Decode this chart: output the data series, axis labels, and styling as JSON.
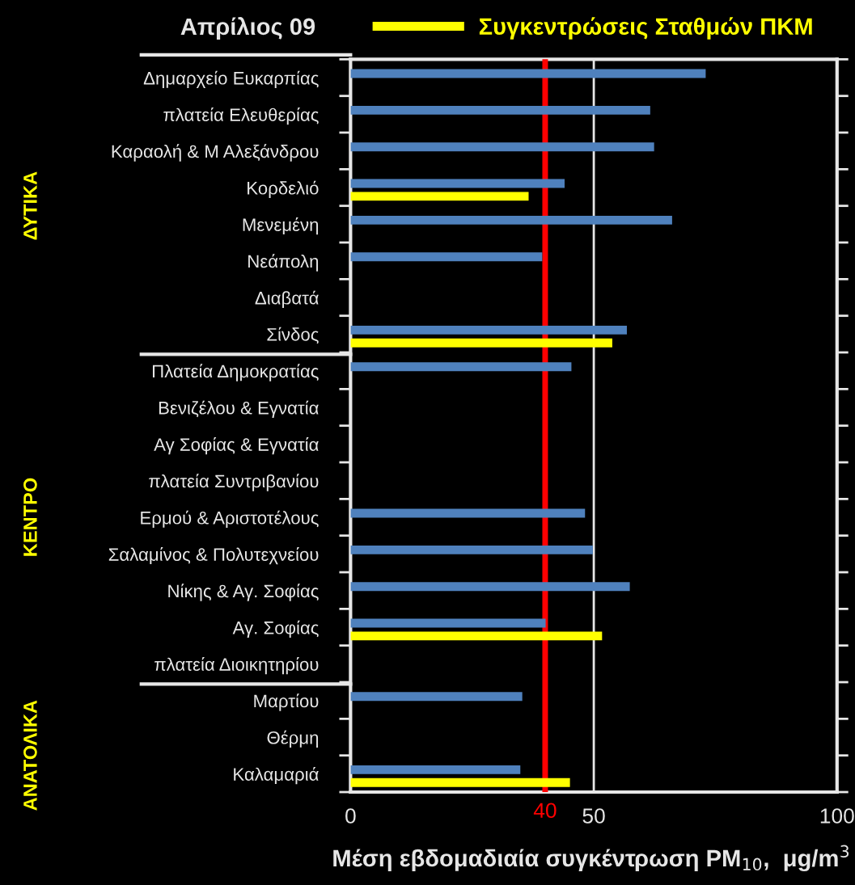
{
  "chart_data": {
    "type": "bar",
    "orientation": "horizontal",
    "title": "Απρίλιος 09",
    "xlabel": "Μέση εβδομαδιαία συγκέντρωση PM$_{10}$,  μg/m$^{3}$",
    "categories": [
      "Δημαρχείο Ευκαρπίας",
      "πλατεία Ελευθερίας",
      "Καραολή & Μ Αλεξάνδρου",
      "Κορδελιό",
      "Μενεμένη",
      "Νεάπολη",
      "Διαβατά",
      "Σίνδος",
      "Πλατεία Δημοκρατίας",
      "Βενιζέλου & Εγνατία",
      "Αγ Σοφίας & Εγνατία",
      "πλατεία Συντριβανίου",
      "Ερμού & Αριστοτέλους",
      "Σαλαμίνος & Πολυτεχνείου",
      "Νίκης & Αγ. Σοφίας",
      "Αγ. Σοφίας",
      "πλατεία Διοικητηρίου",
      "Μαρτίου",
      "Θέρμη",
      "Καλαμαριά"
    ],
    "series": [
      {
        "color": "#4f81bd",
        "values": [
          73.0,
          61.6,
          62.4,
          44.0,
          66.1,
          39.4,
          null,
          56.8,
          45.4,
          null,
          null,
          null,
          48.2,
          49.8,
          57.4,
          40.1,
          null,
          35.3,
          null,
          34.9
        ]
      },
      {
        "name": "Συγκεντρώσεις Σταθμών ΠΚΜ",
        "color": "#ffff00",
        "values": [
          null,
          null,
          null,
          36.6,
          null,
          null,
          null,
          53.8,
          null,
          null,
          null,
          null,
          null,
          null,
          null,
          51.7,
          null,
          null,
          null,
          45.1
        ]
      }
    ],
    "xlim": [
      0,
      100
    ],
    "xticks": [
      0,
      50,
      100
    ],
    "ref_lines": [
      {
        "axis": "x",
        "value": 40,
        "label": "40",
        "color": "#ff0000"
      }
    ],
    "annotations": [
      "ΔΥΤΙΚΑ",
      "ΚΕΝΤΡΟ",
      "ΑΝΑΤΟΛΙΚΑ"
    ],
    "grid": "x",
    "legend": "top"
  }
}
